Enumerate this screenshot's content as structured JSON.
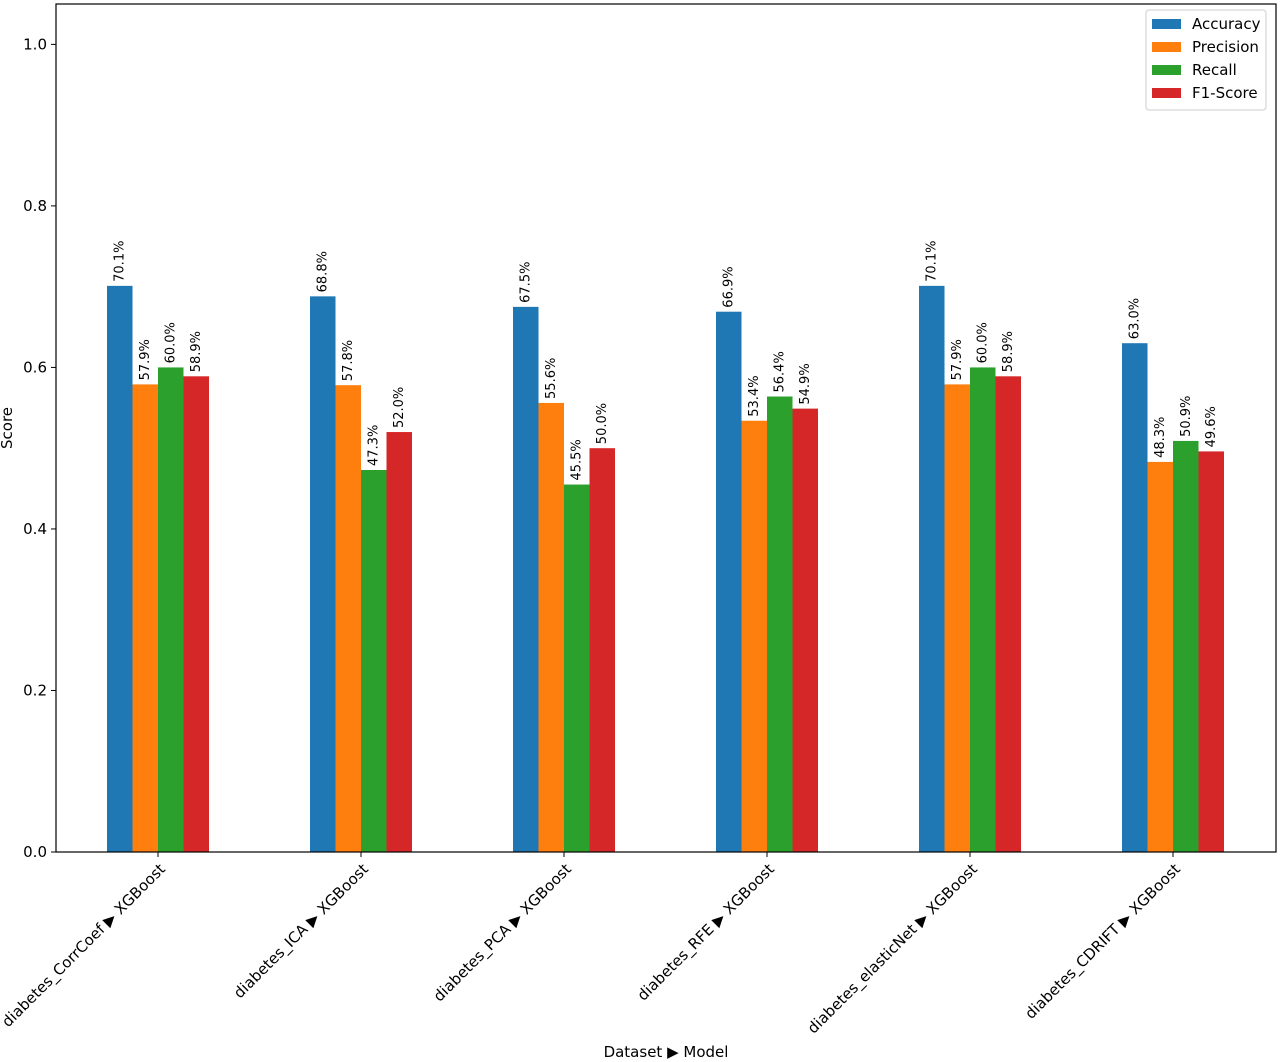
{
  "chart_data": {
    "type": "bar",
    "xlabel": "Dataset ▶ Model",
    "ylabel": "Score",
    "ylim": [
      0,
      1.05
    ],
    "yticks": [
      "0.0",
      "0.2",
      "0.4",
      "0.6",
      "0.8",
      "1.0"
    ],
    "ytick_values": [
      0,
      0.2,
      0.4,
      0.6,
      0.8,
      1.0
    ],
    "grid": false,
    "legend_position": "top-right",
    "categories": [
      "diabetes_CorrCoef ▶ XGBoost",
      "diabetes_ICA ▶ XGBoost",
      "diabetes_PCA ▶ XGBoost",
      "diabetes_RFE ▶ XGBoost",
      "diabetes_elasticNet ▶ XGBoost",
      "diabetes_CDRIFT ▶ XGBoost"
    ],
    "series": [
      {
        "name": "Accuracy",
        "color": "#1f77b4",
        "values": [
          0.701,
          0.688,
          0.675,
          0.669,
          0.701,
          0.63
        ],
        "labels": [
          "70.1%",
          "68.8%",
          "67.5%",
          "66.9%",
          "70.1%",
          "63.0%"
        ]
      },
      {
        "name": "Precision",
        "color": "#ff7f0e",
        "values": [
          0.579,
          0.578,
          0.556,
          0.534,
          0.579,
          0.483
        ],
        "labels": [
          "57.9%",
          "57.8%",
          "55.6%",
          "53.4%",
          "57.9%",
          "48.3%"
        ]
      },
      {
        "name": "Recall",
        "color": "#2ca02c",
        "values": [
          0.6,
          0.473,
          0.455,
          0.564,
          0.6,
          0.509
        ],
        "labels": [
          "60.0%",
          "47.3%",
          "45.5%",
          "56.4%",
          "60.0%",
          "50.9%"
        ]
      },
      {
        "name": "F1-Score",
        "color": "#d62728",
        "values": [
          0.589,
          0.52,
          0.5,
          0.549,
          0.589,
          0.496
        ],
        "labels": [
          "58.9%",
          "52.0%",
          "50.0%",
          "54.9%",
          "58.9%",
          "49.6%"
        ]
      }
    ]
  }
}
